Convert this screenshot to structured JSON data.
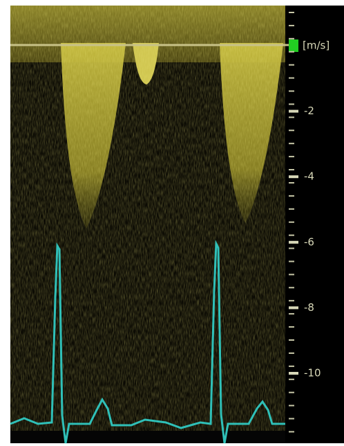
{
  "scale": {
    "unit": "[m/s]",
    "ticks": [
      -2,
      -4,
      -6,
      -8,
      -10
    ]
  }
}
